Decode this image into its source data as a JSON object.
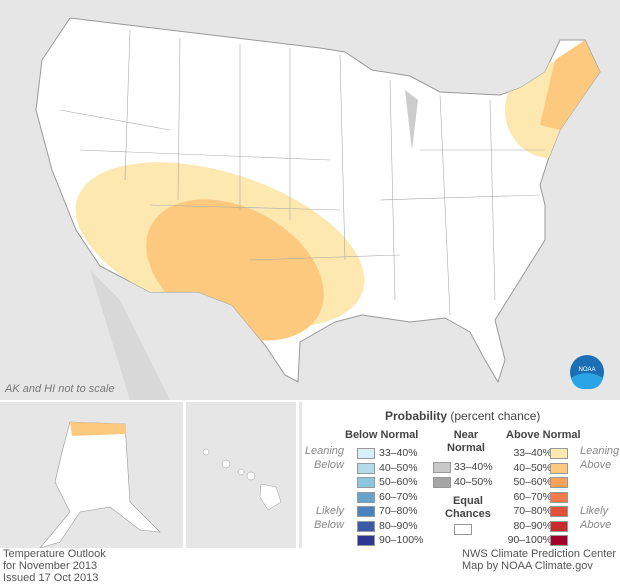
{
  "map": {
    "note": "AK and HI not to scale",
    "logo": "NOAA"
  },
  "legend": {
    "title": "Probability",
    "subtitle": "(percent chance)",
    "below": {
      "header": "Below Normal",
      "leaning": "Leaning Below",
      "likely": "Likely Below",
      "items": [
        {
          "label": "33–40%",
          "color": "#d8f0f7"
        },
        {
          "label": "40–50%",
          "color": "#b3dcea"
        },
        {
          "label": "50–60%",
          "color": "#8ec6de"
        },
        {
          "label": "60–70%",
          "color": "#67a4cd"
        },
        {
          "label": "70–80%",
          "color": "#4a82c0"
        },
        {
          "label": "80–90%",
          "color": "#3a5aa8"
        },
        {
          "label": "90–100%",
          "color": "#2e3592"
        }
      ]
    },
    "near": {
      "header1": "Near",
      "header2": "Normal",
      "items": [
        {
          "label": "33–40%",
          "color": "#c8c8c8"
        },
        {
          "label": "40–50%",
          "color": "#a6a6a6"
        }
      ]
    },
    "equal": {
      "line1": "Equal",
      "line2": "Chances",
      "color": "#ffffff"
    },
    "above": {
      "header": "Above Normal",
      "leaning": "Leaning Above",
      "likely": "Likely Above",
      "items": [
        {
          "label": "33–40%",
          "color": "#fde8b0"
        },
        {
          "label": "40–50%",
          "color": "#fdc97e"
        },
        {
          "label": "50–60%",
          "color": "#fba25a"
        },
        {
          "label": "60–70%",
          "color": "#f57a48"
        },
        {
          "label": "70–80%",
          "color": "#e2503a"
        },
        {
          "label": "80–90%",
          "color": "#c92a2a"
        },
        {
          "label": "90–100%",
          "color": "#a3002a"
        }
      ]
    }
  },
  "footer": {
    "left": [
      "Temperature Outlook",
      "for November 2013",
      "Issued 17 Oct 2013"
    ],
    "right": [
      "NWS Climate Prediction Center",
      "Map by NOAA Climate.gov"
    ]
  }
}
